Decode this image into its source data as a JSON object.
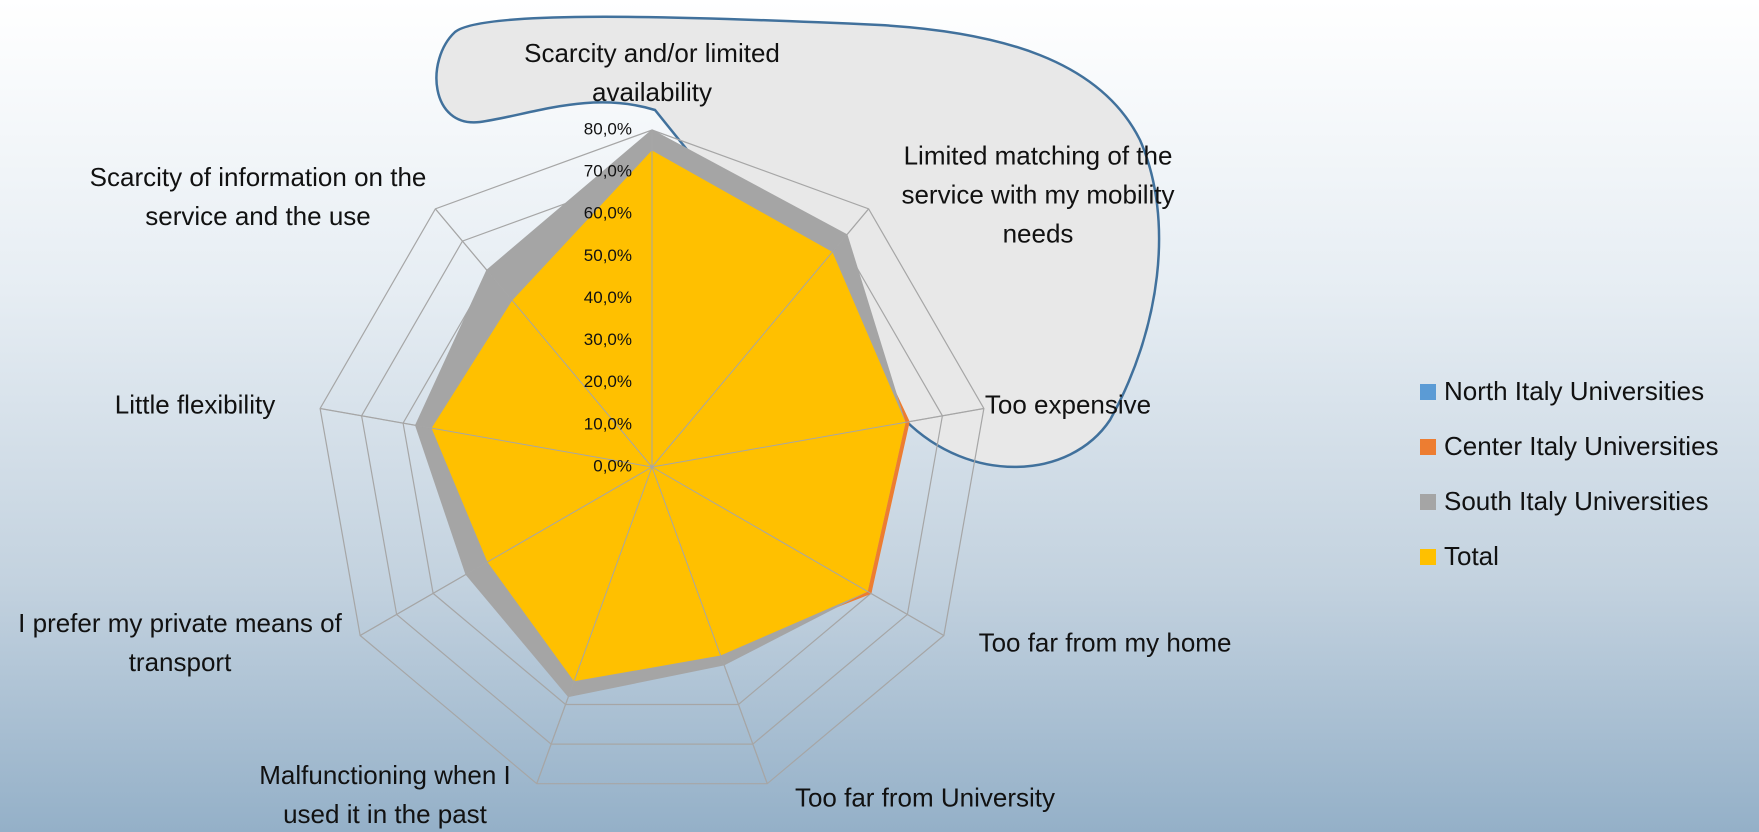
{
  "chart_data": {
    "type": "radar",
    "categories": [
      "Scarcity and/or limited availability",
      "Limited matching of the service with my mobility needs",
      "Too expensive",
      "Too far from my home",
      "Too far from University",
      "Malfunctioning when I used it in the past",
      "I prefer my private means of transport",
      "Little flexibility",
      "Scarcity of information on the service and the use"
    ],
    "series": [
      {
        "name": "North Italy Universities",
        "color": "#5b9bd5",
        "values": [
          74,
          65,
          60,
          57,
          46,
          52,
          44,
          52,
          50
        ]
      },
      {
        "name": "Center Italy Universities",
        "color": "#ed7d31",
        "values": [
          75,
          66,
          62,
          60,
          47,
          53,
          45,
          52,
          51
        ]
      },
      {
        "name": "South Italy Universities",
        "color": "#a5a5a5",
        "values": [
          80,
          72,
          61,
          59,
          50,
          58,
          51,
          57,
          61
        ]
      },
      {
        "name": "Total",
        "color": "#ffc000",
        "values": [
          75,
          66.5,
          61,
          59,
          47.5,
          54,
          45,
          53,
          51.5
        ]
      }
    ],
    "ylim": [
      0,
      80
    ],
    "yticks": [
      {
        "value": 0,
        "label": "0,0%"
      },
      {
        "value": 10,
        "label": "10,0%"
      },
      {
        "value": 20,
        "label": "20,0%"
      },
      {
        "value": 30,
        "label": "30,0%"
      },
      {
        "value": 40,
        "label": "40,0%"
      },
      {
        "value": 50,
        "label": "50,0%"
      },
      {
        "value": 60,
        "label": "60,0%"
      },
      {
        "value": 70,
        "label": "70,0%"
      },
      {
        "value": 80,
        "label": "80,0%"
      }
    ],
    "grid": true,
    "legend": "right"
  }
}
